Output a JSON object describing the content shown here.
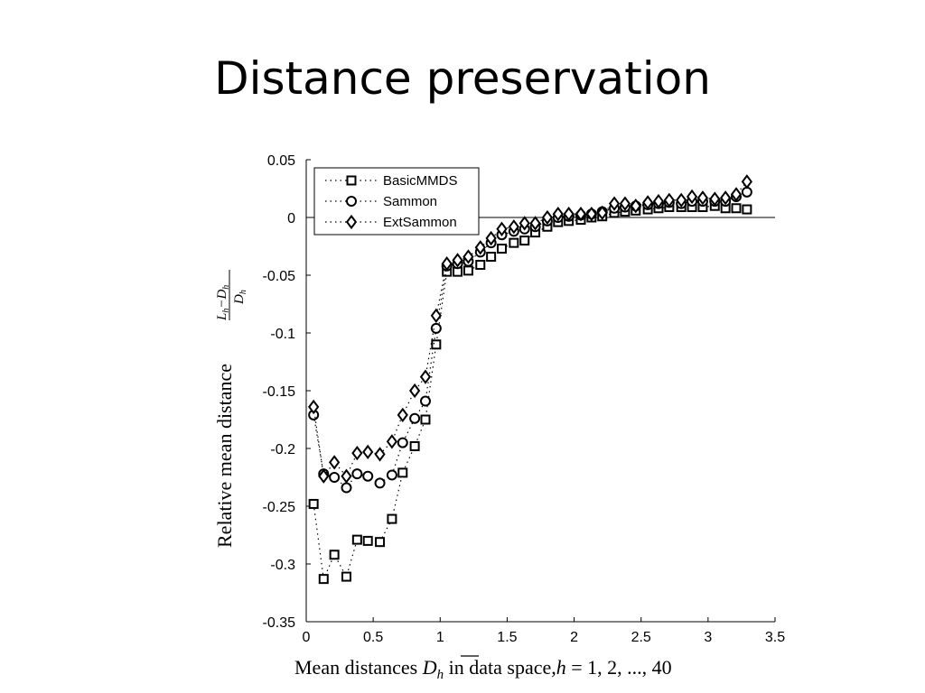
{
  "slide": {
    "title": "Distance preservation"
  },
  "chart_data": {
    "type": "scatter",
    "xlabel": "Mean distances D̄h in data space,h = 1, 2, ..., 40",
    "ylabel": "Relative mean distance (L̄h − D̄h) / D̄h",
    "xlim": [
      0,
      3.5
    ],
    "ylim": [
      -0.35,
      0.05
    ],
    "xticks": [
      "0",
      "0.5",
      "1",
      "1.5",
      "2",
      "2.5",
      "3",
      "3.5"
    ],
    "yticks": [
      "0.05",
      "0",
      "-0.05",
      "-0.1",
      "-0.15",
      "-0.2",
      "-0.25",
      "-0.3",
      "-0.35"
    ],
    "grid": false,
    "legend_position": "top-left",
    "reference_line_y": 0,
    "series": [
      {
        "name": "BasicMMDS",
        "marker": "square",
        "line": "dotted",
        "x": [
          0.055,
          0.13,
          0.21,
          0.3,
          0.38,
          0.46,
          0.55,
          0.64,
          0.72,
          0.81,
          0.89,
          0.97,
          1.05,
          1.13,
          1.21,
          1.3,
          1.38,
          1.46,
          1.55,
          1.63,
          1.71,
          1.8,
          1.88,
          1.96,
          2.05,
          2.13,
          2.21,
          2.3,
          2.38,
          2.46,
          2.55,
          2.63,
          2.71,
          2.8,
          2.88,
          2.96,
          3.05,
          3.13,
          3.21,
          3.29
        ],
        "y": [
          -0.248,
          -0.313,
          -0.292,
          -0.311,
          -0.279,
          -0.28,
          -0.281,
          -0.261,
          -0.221,
          -0.198,
          -0.175,
          -0.11,
          -0.047,
          -0.047,
          -0.046,
          -0.041,
          -0.034,
          -0.027,
          -0.022,
          -0.02,
          -0.013,
          -0.008,
          -0.004,
          -0.003,
          -0.002,
          0.0,
          0.001,
          0.004,
          0.005,
          0.006,
          0.007,
          0.008,
          0.009,
          0.009,
          0.009,
          0.009,
          0.01,
          0.008,
          0.008,
          0.007
        ]
      },
      {
        "name": "Sammon",
        "marker": "circle",
        "line": "dotted",
        "x": [
          0.055,
          0.13,
          0.21,
          0.3,
          0.38,
          0.46,
          0.55,
          0.64,
          0.72,
          0.81,
          0.89,
          0.97,
          1.05,
          1.13,
          1.21,
          1.3,
          1.38,
          1.46,
          1.55,
          1.63,
          1.71,
          1.8,
          1.88,
          1.96,
          2.05,
          2.13,
          2.21,
          2.3,
          2.38,
          2.46,
          2.55,
          2.63,
          2.71,
          2.8,
          2.88,
          2.96,
          3.05,
          3.13,
          3.21,
          3.29
        ],
        "y": [
          -0.171,
          -0.222,
          -0.225,
          -0.234,
          -0.222,
          -0.224,
          -0.23,
          -0.223,
          -0.195,
          -0.174,
          -0.159,
          -0.096,
          -0.042,
          -0.04,
          -0.038,
          -0.03,
          -0.022,
          -0.015,
          -0.012,
          -0.01,
          -0.008,
          -0.003,
          0.0,
          0.001,
          0.002,
          0.003,
          0.005,
          0.008,
          0.009,
          0.01,
          0.011,
          0.012,
          0.013,
          0.012,
          0.014,
          0.014,
          0.014,
          0.014,
          0.018,
          0.022
        ]
      },
      {
        "name": "ExtSammon",
        "marker": "diamond",
        "line": "dotted",
        "x": [
          0.055,
          0.13,
          0.21,
          0.3,
          0.38,
          0.46,
          0.55,
          0.64,
          0.72,
          0.81,
          0.89,
          0.97,
          1.05,
          1.13,
          1.21,
          1.3,
          1.38,
          1.46,
          1.55,
          1.63,
          1.71,
          1.8,
          1.88,
          1.96,
          2.05,
          2.13,
          2.21,
          2.3,
          2.38,
          2.46,
          2.55,
          2.63,
          2.71,
          2.8,
          2.88,
          2.96,
          3.05,
          3.13,
          3.21,
          3.29
        ],
        "y": [
          -0.164,
          -0.224,
          -0.212,
          -0.224,
          -0.204,
          -0.203,
          -0.205,
          -0.194,
          -0.171,
          -0.15,
          -0.138,
          -0.085,
          -0.04,
          -0.037,
          -0.034,
          -0.026,
          -0.018,
          -0.01,
          -0.008,
          -0.005,
          -0.005,
          0.0,
          0.003,
          0.003,
          0.003,
          0.003,
          0.004,
          0.012,
          0.012,
          0.01,
          0.013,
          0.014,
          0.015,
          0.015,
          0.018,
          0.017,
          0.016,
          0.017,
          0.02,
          0.031
        ]
      }
    ]
  }
}
